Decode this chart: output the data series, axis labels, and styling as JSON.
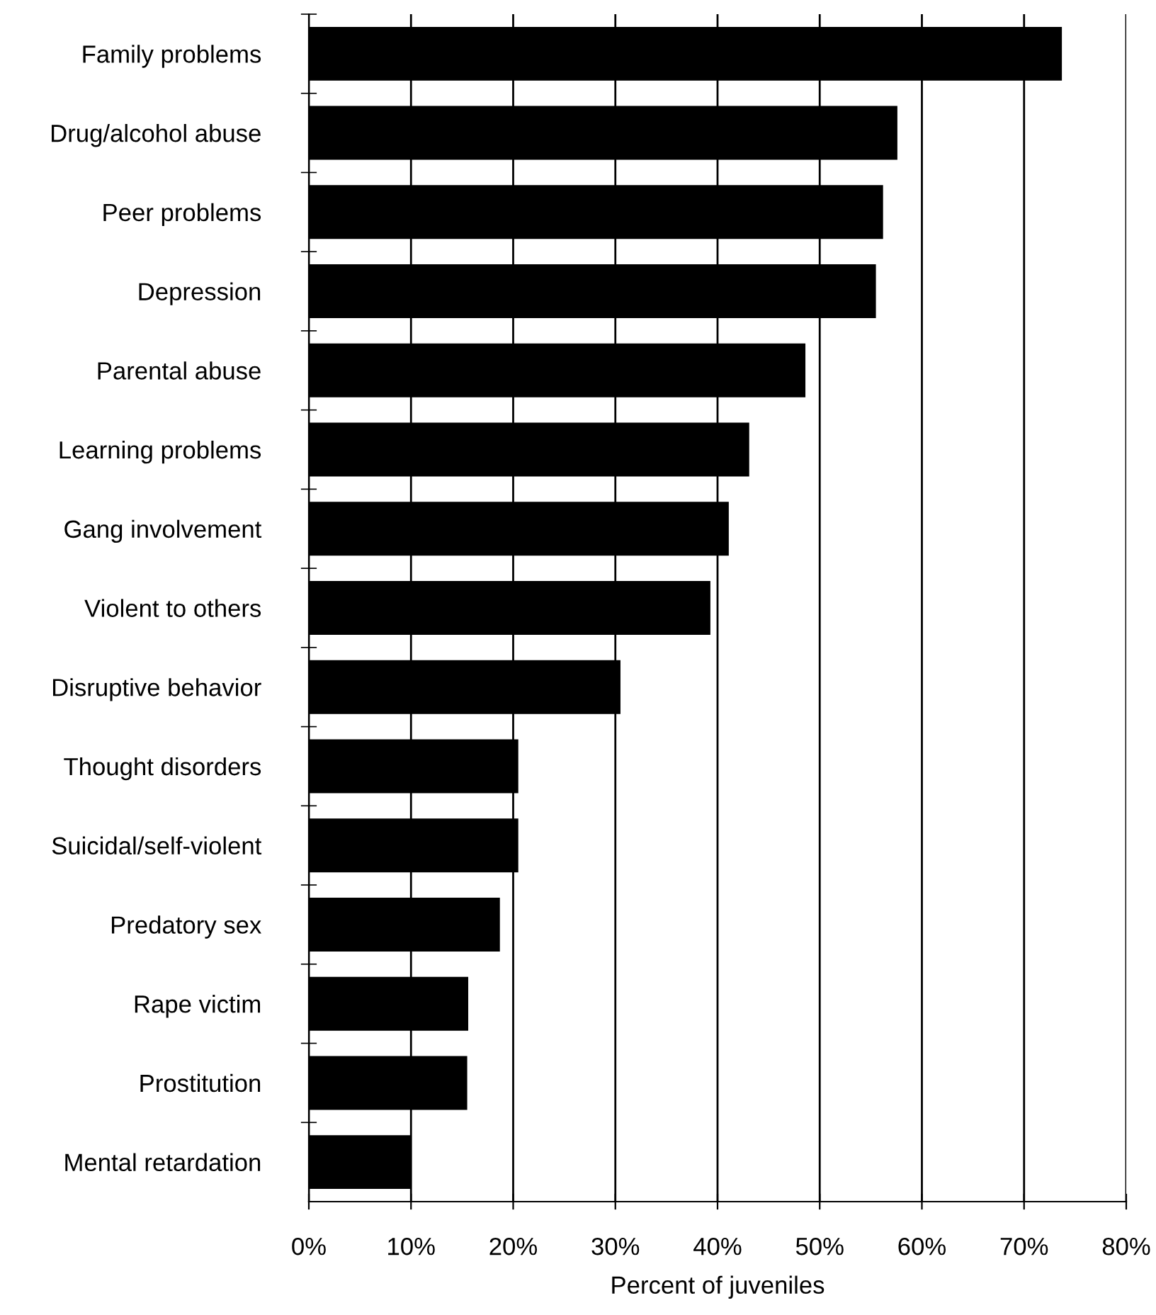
{
  "chart_data": {
    "type": "bar",
    "orientation": "horizontal",
    "xlabel": "Percent of juveniles",
    "categories": [
      "Family problems",
      "Drug/alcohol abuse",
      "Peer problems",
      "Depression",
      "Parental abuse",
      "Learning problems",
      "Gang involvement",
      "Violent to others",
      "Disruptive behavior",
      "Thought disorders",
      "Suicidal/self-violent",
      "Predatory sex",
      "Rape victim",
      "Prostitution",
      "Mental retardation"
    ],
    "values": [
      73.7,
      57.6,
      56.2,
      55.5,
      48.6,
      43.1,
      41.1,
      39.3,
      30.5,
      20.5,
      20.5,
      18.7,
      15.6,
      15.5,
      10.0
    ],
    "color": "#000000",
    "xlim": [
      0,
      80
    ],
    "xticks": [
      {
        "value": 0,
        "label": "0%"
      },
      {
        "value": 10,
        "label": "10%"
      },
      {
        "value": 20,
        "label": "20%"
      },
      {
        "value": 30,
        "label": "30%"
      },
      {
        "value": 40,
        "label": "40%"
      },
      {
        "value": 50,
        "label": "50%"
      },
      {
        "value": 60,
        "label": "60%"
      },
      {
        "value": 70,
        "label": "70%"
      },
      {
        "value": 80,
        "label": "80%"
      }
    ],
    "grid": "x",
    "legend": false
  }
}
